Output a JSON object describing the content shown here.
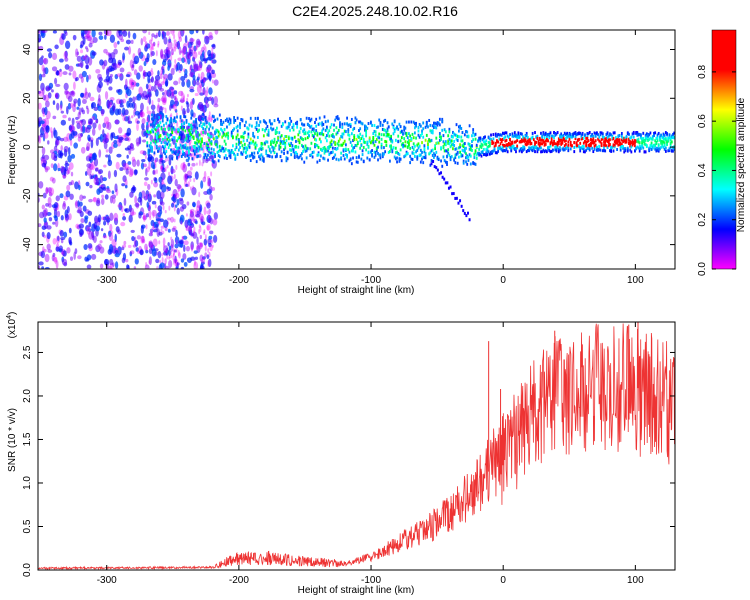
{
  "title": "C2E4.2025.248.10.02.R16",
  "chart_data": [
    {
      "type": "heatmap",
      "xlabel": "Height of straight line (km)",
      "ylabel": "Frequency (Hz)",
      "xlim": [
        -352,
        130
      ],
      "ylim": [
        -50,
        48
      ],
      "xticks": [
        -300,
        -200,
        -100,
        0,
        100
      ],
      "yticks": [
        -40,
        -20,
        0,
        20,
        40
      ],
      "colorbar": {
        "label": "Normalized spectral amplitude",
        "range": [
          0.0,
          0.97
        ],
        "ticks": [
          "0.0",
          "0.2",
          "0.4",
          "0.6",
          "0.8"
        ],
        "tick_values": [
          0.0,
          0.2,
          0.4,
          0.6,
          0.8
        ],
        "colors": [
          "#ff00ff",
          "#0000ff",
          "#00ffff",
          "#00ff00",
          "#ffff00",
          "#ff0000",
          "#ff0000"
        ]
      },
      "band_center_freq_hz": [
        {
          "x": -265,
          "y": 5
        },
        {
          "x": -200,
          "y": 3
        },
        {
          "x": -100,
          "y": 3
        },
        {
          "x": -50,
          "y": 2
        },
        {
          "x": -20,
          "y": 0
        },
        {
          "x": 0,
          "y": 2
        },
        {
          "x": 50,
          "y": 2
        },
        {
          "x": 130,
          "y": 2
        }
      ],
      "peak_amplitude_region_km": [
        -10,
        100
      ],
      "grid": false
    },
    {
      "type": "line",
      "xlabel": "Height of straight line (km)",
      "ylabel": "SNR (10 * v/v)",
      "multiplier": "(x10",
      "multiplier_exp": "4",
      "xlim": [
        -352,
        130
      ],
      "ylim": [
        0,
        2.85
      ],
      "xticks": [
        -300,
        -200,
        -100,
        0,
        100
      ],
      "yticks": [
        "0.0",
        "0.5",
        "1.0",
        "1.5",
        "2.0",
        "2.5"
      ],
      "ytick_values": [
        0.0,
        0.5,
        1.0,
        1.5,
        2.0,
        2.5
      ],
      "line_color": "#ee3333",
      "envelope": [
        {
          "x": -352,
          "y": 0.02
        },
        {
          "x": -220,
          "y": 0.03
        },
        {
          "x": -205,
          "y": 0.12
        },
        {
          "x": -180,
          "y": 0.14
        },
        {
          "x": -150,
          "y": 0.1
        },
        {
          "x": -120,
          "y": 0.07
        },
        {
          "x": -100,
          "y": 0.15
        },
        {
          "x": -80,
          "y": 0.3
        },
        {
          "x": -60,
          "y": 0.45
        },
        {
          "x": -40,
          "y": 0.65
        },
        {
          "x": -20,
          "y": 0.95
        },
        {
          "x": 0,
          "y": 1.35
        },
        {
          "x": 20,
          "y": 1.75
        },
        {
          "x": 40,
          "y": 2.0
        },
        {
          "x": 70,
          "y": 2.1
        },
        {
          "x": 100,
          "y": 2.1
        },
        {
          "x": 130,
          "y": 1.95
        }
      ],
      "spikes": [
        {
          "x": -11,
          "y": 2.63
        },
        {
          "x": 39,
          "y": 2.75
        },
        {
          "x": 95,
          "y": 2.82
        },
        {
          "x": 102,
          "y": 2.85
        },
        {
          "x": -2,
          "y": 2.08
        }
      ],
      "grid": false
    }
  ]
}
